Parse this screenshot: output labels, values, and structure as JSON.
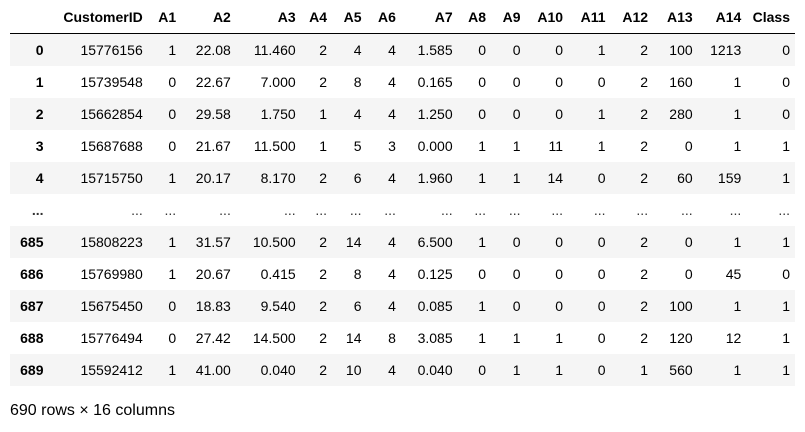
{
  "table": {
    "columns": [
      "",
      "CustomerID",
      "A1",
      "A2",
      "A3",
      "A4",
      "A5",
      "A6",
      "A7",
      "A8",
      "A9",
      "A10",
      "A11",
      "A12",
      "A13",
      "A14",
      "Class"
    ],
    "rows": [
      [
        "0",
        "15776156",
        "1",
        "22.08",
        "11.460",
        "2",
        "4",
        "4",
        "1.585",
        "0",
        "0",
        "0",
        "1",
        "2",
        "100",
        "1213",
        "0"
      ],
      [
        "1",
        "15739548",
        "0",
        "22.67",
        "7.000",
        "2",
        "8",
        "4",
        "0.165",
        "0",
        "0",
        "0",
        "0",
        "2",
        "160",
        "1",
        "0"
      ],
      [
        "2",
        "15662854",
        "0",
        "29.58",
        "1.750",
        "1",
        "4",
        "4",
        "1.250",
        "0",
        "0",
        "0",
        "1",
        "2",
        "280",
        "1",
        "0"
      ],
      [
        "3",
        "15687688",
        "0",
        "21.67",
        "11.500",
        "1",
        "5",
        "3",
        "0.000",
        "1",
        "1",
        "11",
        "1",
        "2",
        "0",
        "1",
        "1"
      ],
      [
        "4",
        "15715750",
        "1",
        "20.17",
        "8.170",
        "2",
        "6",
        "4",
        "1.960",
        "1",
        "1",
        "14",
        "0",
        "2",
        "60",
        "159",
        "1"
      ],
      [
        "...",
        "...",
        "...",
        "...",
        "...",
        "...",
        "...",
        "...",
        "...",
        "...",
        "...",
        "...",
        "...",
        "...",
        "...",
        "...",
        "..."
      ],
      [
        "685",
        "15808223",
        "1",
        "31.57",
        "10.500",
        "2",
        "14",
        "4",
        "6.500",
        "1",
        "0",
        "0",
        "0",
        "2",
        "0",
        "1",
        "1"
      ],
      [
        "686",
        "15769980",
        "1",
        "20.67",
        "0.415",
        "2",
        "8",
        "4",
        "0.125",
        "0",
        "0",
        "0",
        "0",
        "2",
        "0",
        "45",
        "0"
      ],
      [
        "687",
        "15675450",
        "0",
        "18.83",
        "9.540",
        "2",
        "6",
        "4",
        "0.085",
        "1",
        "0",
        "0",
        "0",
        "2",
        "100",
        "1",
        "1"
      ],
      [
        "688",
        "15776494",
        "0",
        "27.42",
        "14.500",
        "2",
        "14",
        "8",
        "3.085",
        "1",
        "1",
        "1",
        "0",
        "2",
        "120",
        "12",
        "1"
      ],
      [
        "689",
        "15592412",
        "1",
        "41.00",
        "0.040",
        "2",
        "10",
        "4",
        "0.040",
        "0",
        "1",
        "1",
        "0",
        "1",
        "560",
        "1",
        "1"
      ]
    ]
  },
  "footer": {
    "shape_text": "690 rows × 16 columns"
  }
}
